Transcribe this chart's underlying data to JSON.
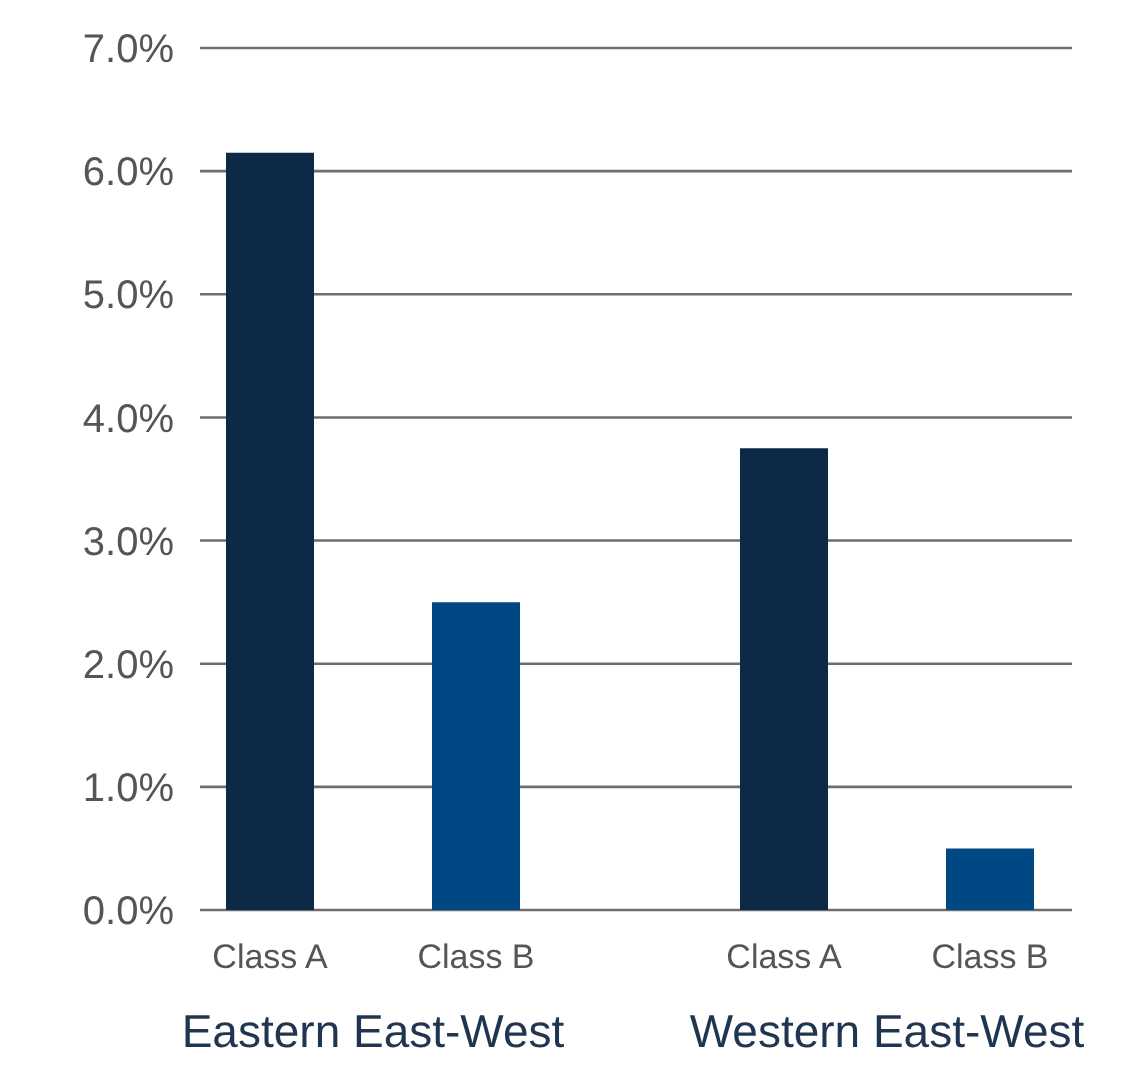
{
  "chart_data": {
    "type": "bar",
    "categories": [
      "Eastern East-West",
      "Western East-West"
    ],
    "series": [
      {
        "name": "Class A",
        "color": "#0c2a45",
        "values": [
          6.15,
          3.75
        ]
      },
      {
        "name": "Class B",
        "color": "#004883",
        "values": [
          2.5,
          0.5
        ]
      }
    ],
    "ylim": [
      0,
      7
    ],
    "yticks": [
      {
        "value": 0,
        "label": "0.0%"
      },
      {
        "value": 1,
        "label": "1.0%"
      },
      {
        "value": 2,
        "label": "2.0%"
      },
      {
        "value": 3,
        "label": "3.0%"
      },
      {
        "value": 4,
        "label": "4.0%"
      },
      {
        "value": 5,
        "label": "5.0%"
      },
      {
        "value": 6,
        "label": "6.0%"
      },
      {
        "value": 7,
        "label": "7.0%"
      }
    ],
    "grid": "y"
  }
}
